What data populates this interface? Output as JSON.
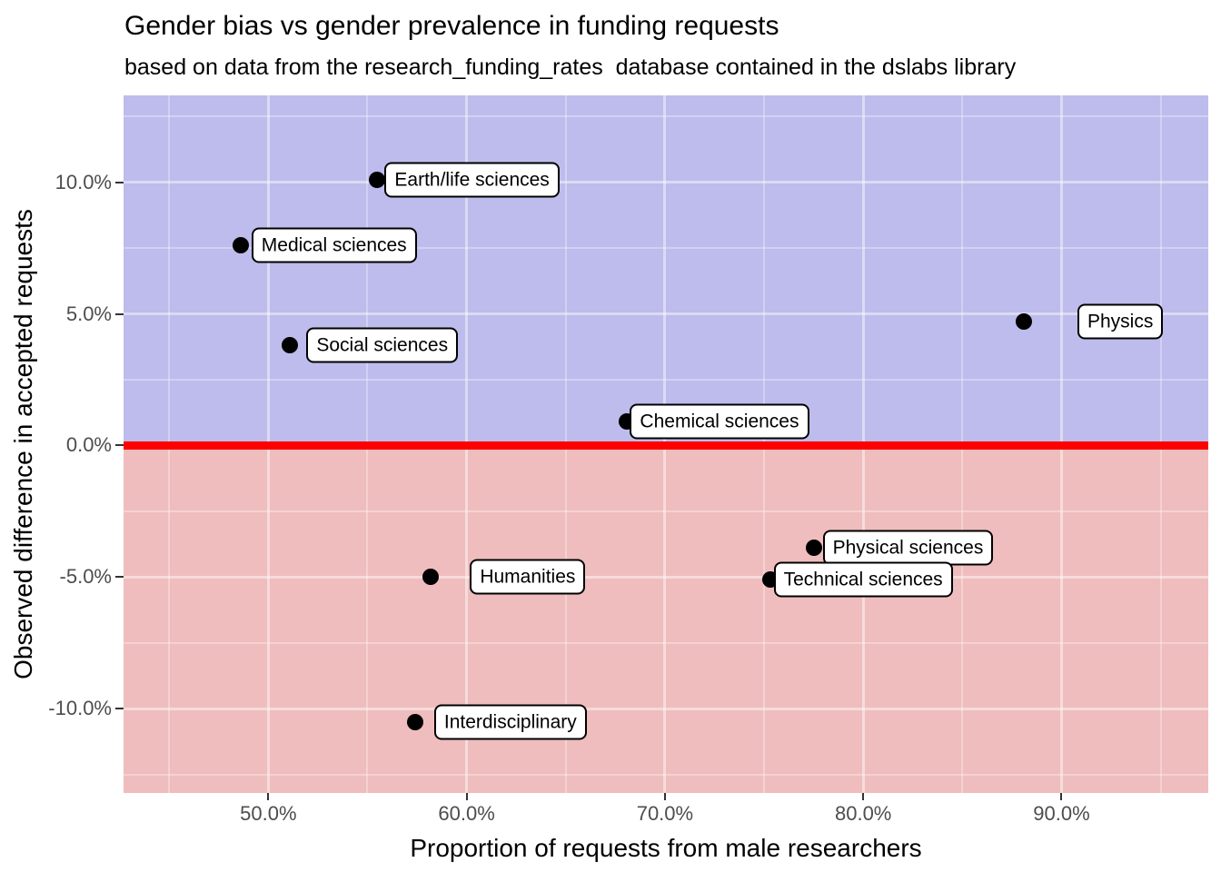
{
  "header": {
    "title": "Gender bias vs gender prevalence in funding requests",
    "subtitle": "based on data from the research_funding_rates  database contained in the dslabs library"
  },
  "chart_data": {
    "type": "scatter",
    "title": "Gender bias vs gender prevalence in funding requests",
    "subtitle": "based on data from the research_funding_rates  database contained in the dslabs library",
    "xlabel": "Proportion of requests from male researchers",
    "ylabel": "Observed difference in accepted requests",
    "xlim": [
      42.7,
      97.4
    ],
    "ylim": [
      -13.2,
      13.3
    ],
    "grid": true,
    "legend": "none",
    "x_ticks": [
      {
        "value": 50,
        "label": "50.0%"
      },
      {
        "value": 60,
        "label": "60.0%"
      },
      {
        "value": 70,
        "label": "70.0%"
      },
      {
        "value": 80,
        "label": "80.0%"
      },
      {
        "value": 90,
        "label": "90.0%"
      }
    ],
    "y_ticks": [
      {
        "value": 10,
        "label": "10.0%"
      },
      {
        "value": 5,
        "label": "5.0%"
      },
      {
        "value": 0,
        "label": "0.0%"
      },
      {
        "value": -5,
        "label": "-5.0%"
      },
      {
        "value": -10,
        "label": "-10.0%"
      }
    ],
    "x_minor": [
      45,
      55,
      65,
      75,
      85,
      95
    ],
    "y_minor": [
      12.5,
      7.5,
      2.5,
      -2.5,
      -7.5,
      -12.5
    ],
    "regions": [
      {
        "name": "men-favored-region",
        "from": 0,
        "to": 13.3,
        "color": "#BDBCEC"
      },
      {
        "name": "women-favored-region",
        "from": -13.2,
        "to": 0,
        "color": "#EFBDBD"
      }
    ],
    "zero_line": {
      "y": 0,
      "color": "#FF0000",
      "thickness_px": 9
    },
    "point_color": "#000000",
    "points": [
      {
        "label": "Earth/life sciences",
        "x": 55.5,
        "y": 10.1,
        "label_dx": 8
      },
      {
        "label": "Medical sciences",
        "x": 48.6,
        "y": 7.6,
        "label_dx": 12
      },
      {
        "label": "Social sciences",
        "x": 51.1,
        "y": 3.8,
        "label_dx": 18
      },
      {
        "label": "Physics",
        "x": 88.1,
        "y": 4.7,
        "label_dx": 59
      },
      {
        "label": "Chemical sciences",
        "x": 68.1,
        "y": 0.9,
        "label_dx": 3
      },
      {
        "label": "Physical sciences",
        "x": 77.5,
        "y": -3.9,
        "label_dx": 10
      },
      {
        "label": "Technical sciences",
        "x": 75.3,
        "y": -5.1,
        "label_dx": 4
      },
      {
        "label": "Humanities",
        "x": 58.2,
        "y": -5.0,
        "label_dx": 43
      },
      {
        "label": "Interdisciplinary",
        "x": 57.4,
        "y": -10.5,
        "label_dx": 21
      }
    ],
    "colors": {
      "positive_region": "#BDBCEC",
      "negative_region": "#EFBDBD",
      "zero_line": "#FF0000",
      "point": "#000000",
      "tick_label": "#4D4D4D",
      "text": "#000000"
    }
  }
}
